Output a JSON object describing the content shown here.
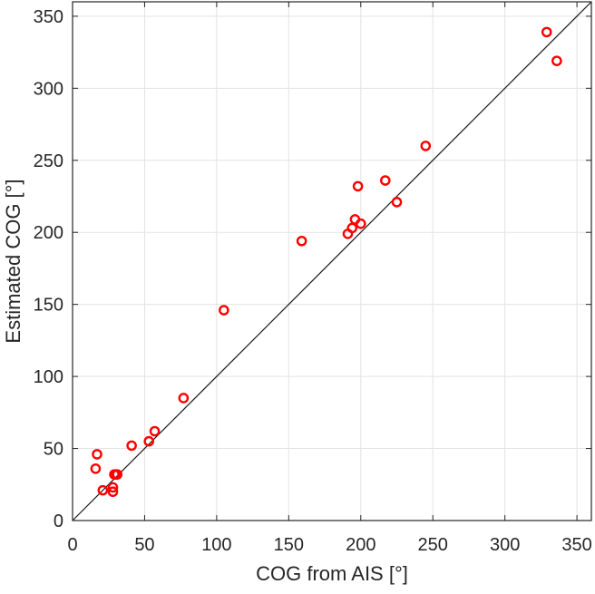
{
  "chart_data": {
    "type": "scatter",
    "xlabel": "COG from AIS [°]",
    "ylabel": "Estimated COG [°]",
    "xlim": [
      0,
      360
    ],
    "ylim": [
      0,
      360
    ],
    "xticks": [
      0,
      50,
      100,
      150,
      200,
      250,
      300,
      350
    ],
    "yticks": [
      0,
      50,
      100,
      150,
      200,
      250,
      300,
      350
    ],
    "grid": true,
    "reference_line": {
      "from": [
        0,
        0
      ],
      "to": [
        360,
        360
      ],
      "color": "#1a1a1a"
    },
    "marker_color": "#ff0000",
    "series": [
      {
        "points": [
          [
            17,
            46
          ],
          [
            16,
            36
          ],
          [
            21,
            21
          ],
          [
            28,
            20
          ],
          [
            28,
            23
          ],
          [
            29,
            32
          ],
          [
            30,
            32
          ],
          [
            31,
            32
          ],
          [
            41,
            52
          ],
          [
            53,
            55
          ],
          [
            57,
            62
          ],
          [
            77,
            85
          ],
          [
            105,
            146
          ],
          [
            159,
            194
          ],
          [
            191,
            199
          ],
          [
            194,
            203
          ],
          [
            196,
            209
          ],
          [
            198,
            232
          ],
          [
            200,
            206
          ],
          [
            217,
            236
          ],
          [
            225,
            221
          ],
          [
            245,
            260
          ],
          [
            329,
            339
          ],
          [
            336,
            319
          ]
        ]
      }
    ]
  }
}
